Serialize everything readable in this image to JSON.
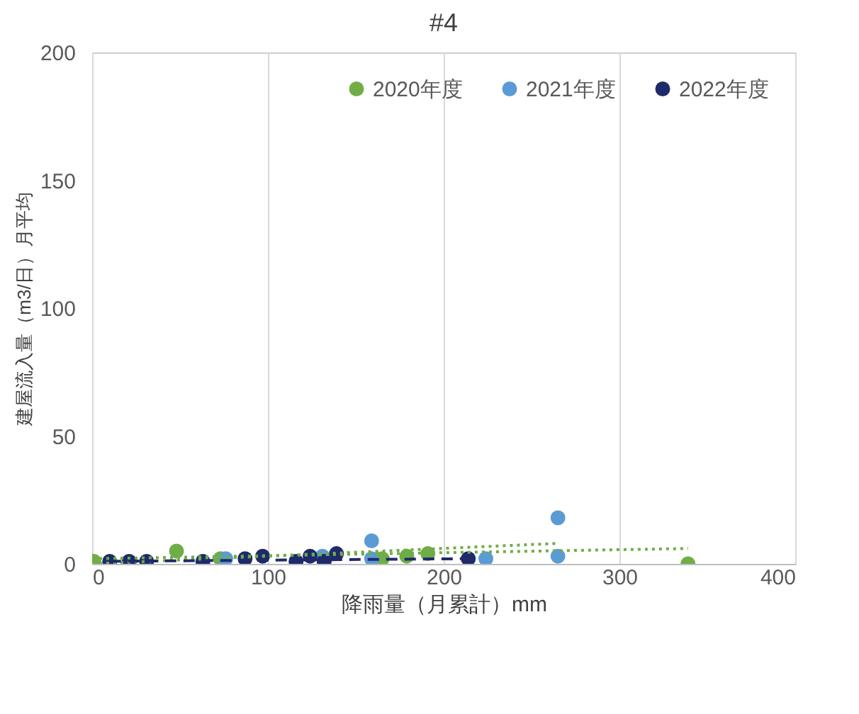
{
  "chart_data": {
    "type": "scatter",
    "title": "#4",
    "xlabel": "降雨量（月累計）mm",
    "ylabel": "建屋流入量（m3/日）月平均",
    "xlim": [
      0,
      400
    ],
    "xticks": [
      0,
      100,
      200,
      300,
      400
    ],
    "ylim": [
      0,
      200
    ],
    "yticks": [
      0,
      50,
      100,
      150,
      200
    ],
    "grid": "x",
    "legend": "top right",
    "marker": "circle",
    "series": [
      {
        "name": "2020年度",
        "color": "#70ad47",
        "x": [
          1,
          48,
          73,
          165,
          179,
          191,
          339
        ],
        "values": [
          1,
          5,
          2,
          2,
          3,
          4,
          0
        ]
      },
      {
        "name": "2021年度",
        "color": "#5b9bd5",
        "x": [
          76,
          131,
          159,
          159,
          224,
          265,
          265
        ],
        "values": [
          2,
          3,
          9,
          2,
          2,
          18,
          3
        ]
      },
      {
        "name": "2022年度",
        "color": "#1f2a6b",
        "x": [
          10,
          21,
          31,
          63,
          87,
          97,
          116,
          124,
          132,
          139,
          214
        ],
        "values": [
          1,
          1,
          1,
          1,
          2,
          3,
          1,
          3,
          1,
          4,
          2
        ]
      },
      {
        "type": "line",
        "color": "#70ad47",
        "line_style": "dotted",
        "marker": "none",
        "x": [
          0,
          339
        ],
        "values": [
          2,
          6
        ]
      },
      {
        "type": "line",
        "color": "#70ad47",
        "line_style": "dotted",
        "marker": "none",
        "x": [
          0,
          265
        ],
        "values": [
          0,
          8
        ]
      },
      {
        "type": "line",
        "color": "#1f2a6b",
        "line_style": "dashed",
        "marker": "none",
        "x": [
          10,
          214
        ],
        "values": [
          1,
          2
        ]
      }
    ]
  }
}
